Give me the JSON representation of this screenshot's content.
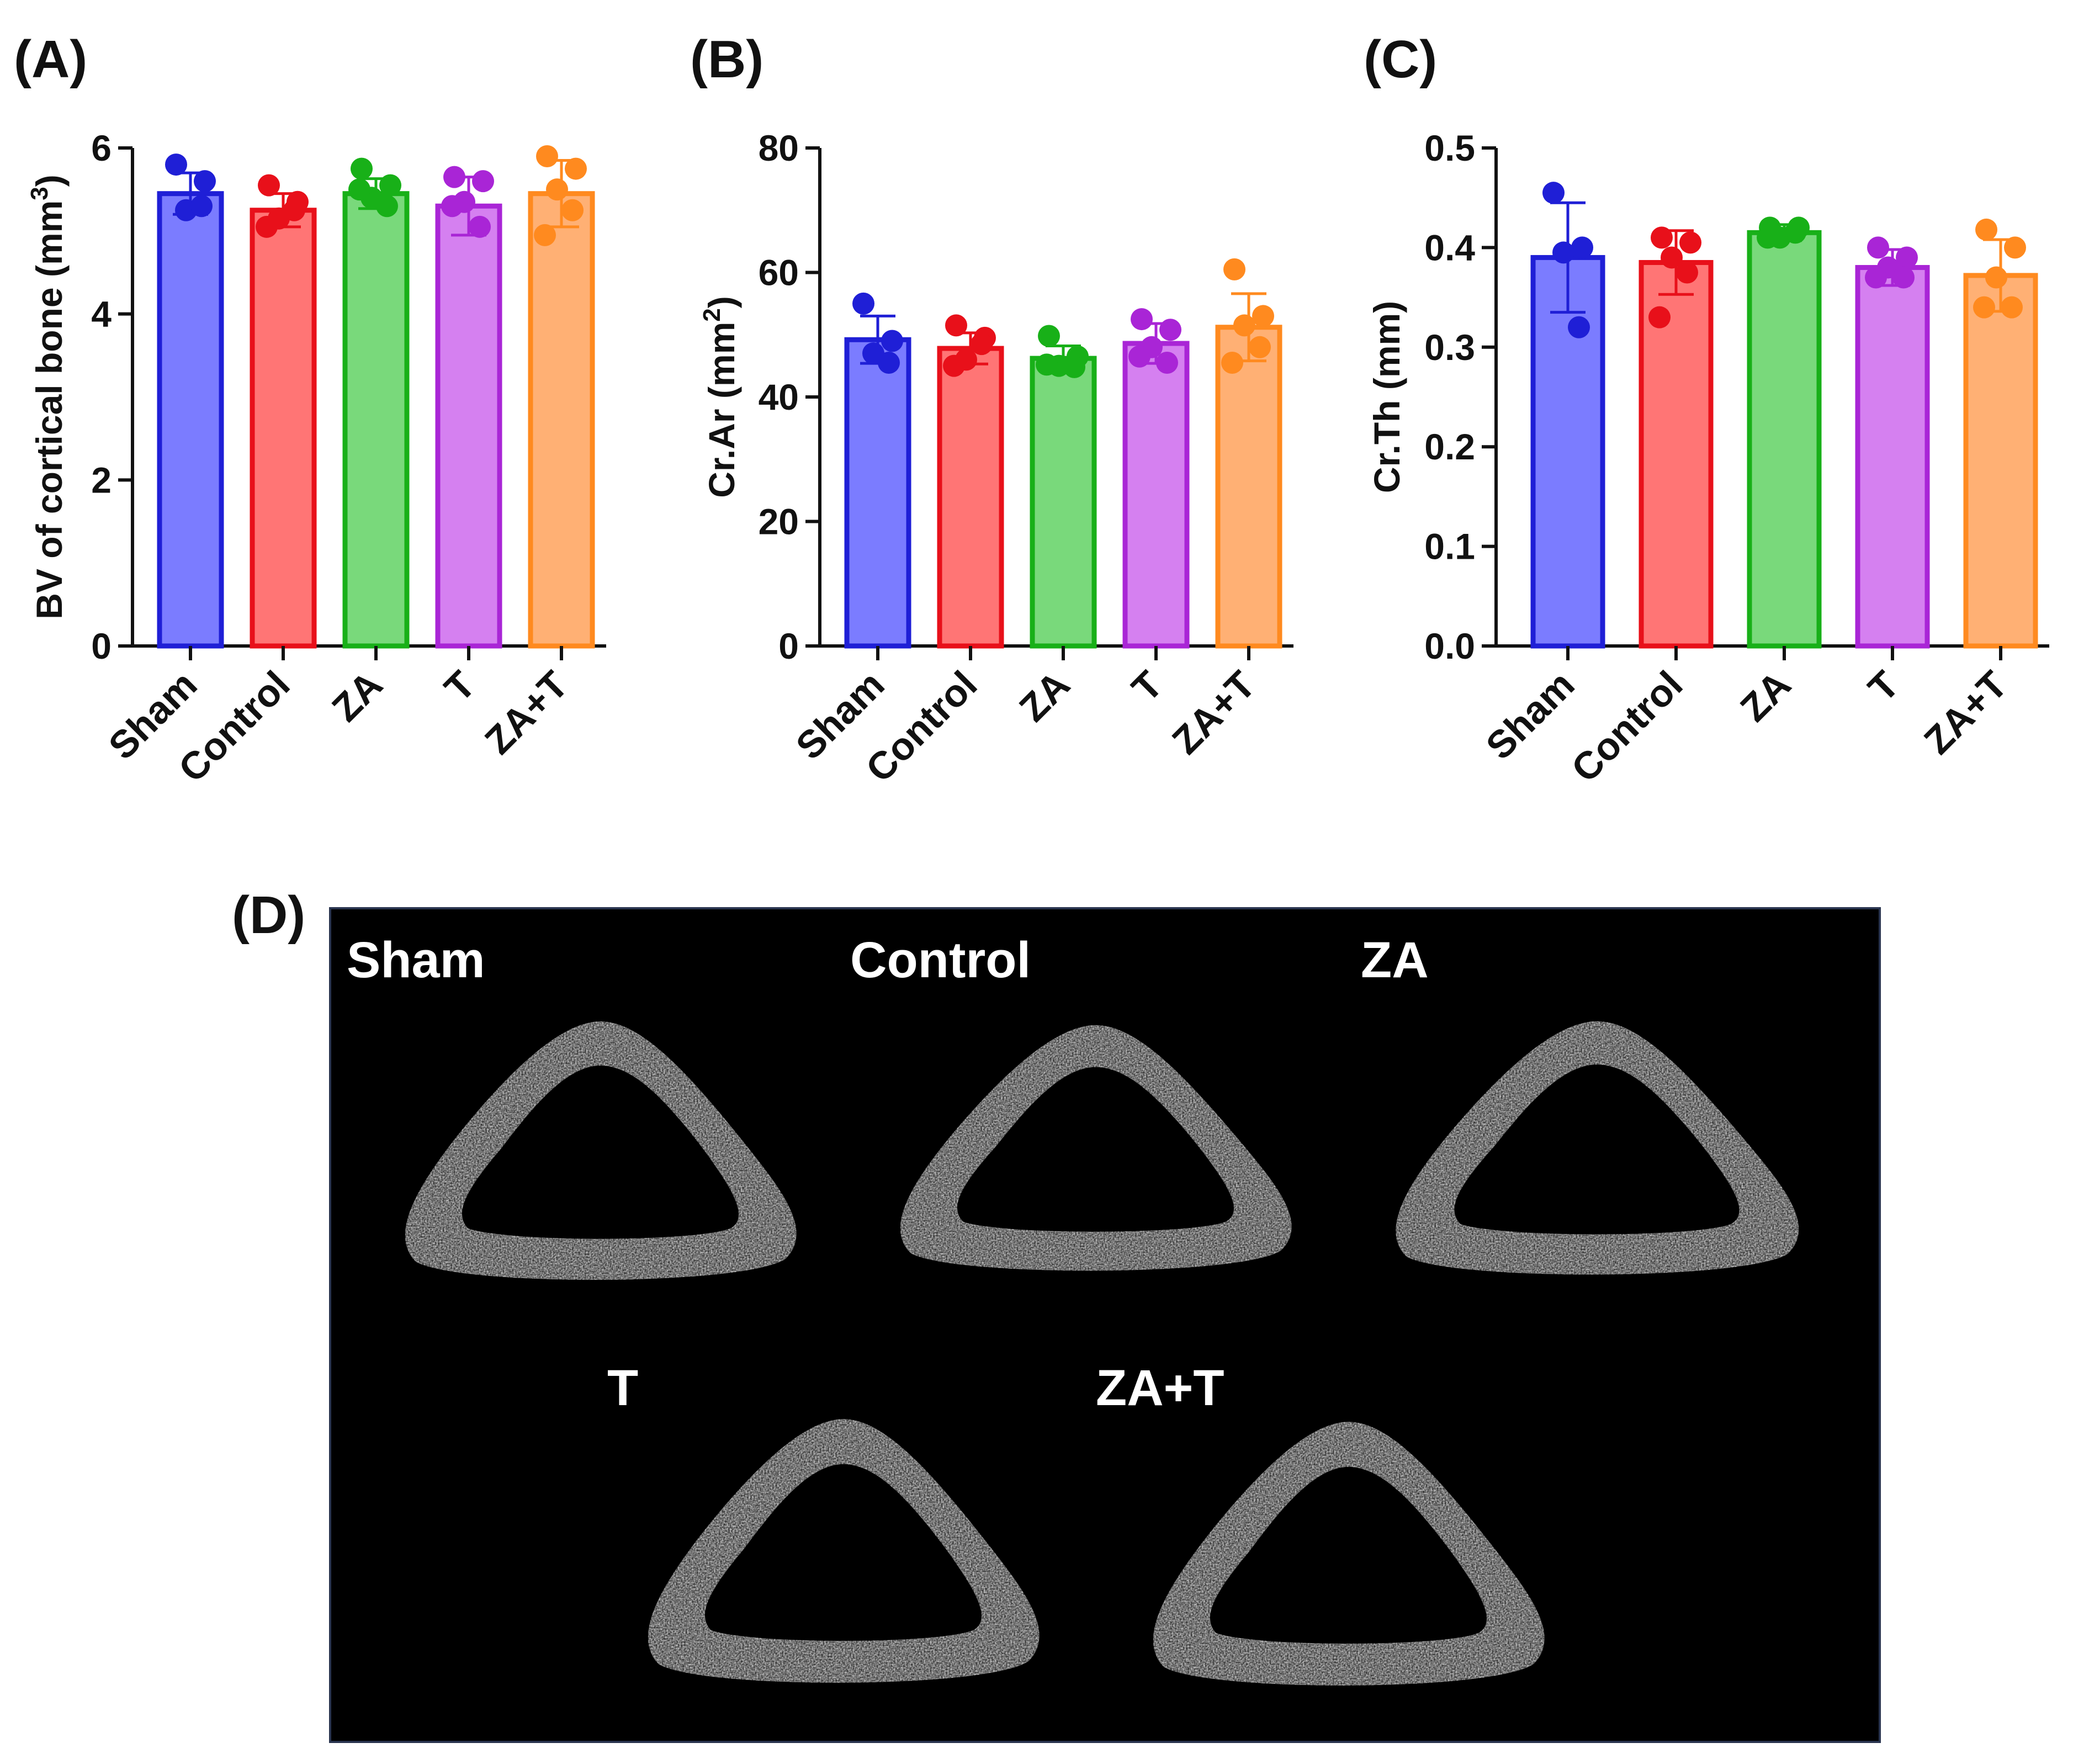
{
  "panel_d": {
    "letter": "(D)",
    "image_labels": [
      "Sham",
      "Control",
      "ZA",
      "T",
      "ZA+T"
    ]
  },
  "chart_data": [
    {
      "type": "bar",
      "panel": "(A)",
      "categories": [
        "Sham",
        "Control",
        "ZA",
        "T",
        "ZA+T"
      ],
      "values": [
        5.45,
        5.25,
        5.45,
        5.3,
        5.45
      ],
      "errors": [
        0.25,
        0.2,
        0.18,
        0.35,
        0.4
      ],
      "points": [
        [
          5.8,
          5.6,
          5.25,
          5.3
        ],
        [
          5.55,
          5.35,
          5.15,
          5.25,
          5.05
        ],
        [
          5.75,
          5.55,
          5.4,
          5.3,
          5.5
        ],
        [
          5.65,
          5.6,
          5.35,
          5.05,
          5.3
        ],
        [
          5.9,
          5.75,
          5.5,
          5.25,
          4.95
        ]
      ],
      "colors": [
        "#7b7cff",
        "#ff7575",
        "#79d97b",
        "#d580f0",
        "#ffb074"
      ],
      "edge_colors": [
        "#1f1fd6",
        "#e8101a",
        "#18b018",
        "#a925d6",
        "#ff8a1f"
      ],
      "ylabel": "BV of cortical bone (mm",
      "ylabel_sup": "3",
      "ylabel_end": ")",
      "ylim": [
        0,
        6
      ],
      "yticks": [
        "0",
        "2",
        "4",
        "6"
      ]
    },
    {
      "type": "bar",
      "panel": "(B)",
      "categories": [
        "Sham",
        "Control",
        "ZA",
        "T",
        "ZA+T"
      ],
      "values": [
        49.2,
        47.8,
        46.2,
        48.6,
        51.2
      ],
      "errors": [
        3.8,
        2.5,
        2.0,
        3.2,
        5.4
      ],
      "points": [
        [
          55.0,
          49.0,
          47.0,
          45.5
        ],
        [
          51.5,
          49.5,
          46.0,
          48.5,
          45.0
        ],
        [
          49.8,
          46.5,
          45.0,
          44.8,
          45.2
        ],
        [
          52.5,
          50.8,
          48.0,
          45.5,
          46.5
        ],
        [
          60.5,
          53.0,
          51.5,
          48.0,
          45.5
        ]
      ],
      "colors": [
        "#7b7cff",
        "#ff7575",
        "#79d97b",
        "#d580f0",
        "#ffb074"
      ],
      "edge_colors": [
        "#1f1fd6",
        "#e8101a",
        "#18b018",
        "#a925d6",
        "#ff8a1f"
      ],
      "ylabel": "Cr.Ar (mm",
      "ylabel_sup": "2",
      "ylabel_end": ")",
      "ylim": [
        0,
        80
      ],
      "yticks": [
        "0",
        "20",
        "40",
        "60",
        "80"
      ]
    },
    {
      "type": "bar",
      "panel": "(C)",
      "categories": [
        "Sham",
        "Control",
        "ZA",
        "T",
        "ZA+T"
      ],
      "values": [
        0.39,
        0.385,
        0.415,
        0.38,
        0.372
      ],
      "errors": [
        0.055,
        0.032,
        0.008,
        0.018,
        0.036
      ],
      "points": [
        [
          0.455,
          0.4,
          0.395,
          0.32
        ],
        [
          0.41,
          0.405,
          0.39,
          0.375,
          0.33
        ],
        [
          0.42,
          0.42,
          0.41,
          0.415,
          0.41
        ],
        [
          0.4,
          0.39,
          0.38,
          0.37,
          0.37
        ],
        [
          0.418,
          0.4,
          0.37,
          0.34,
          0.34
        ]
      ],
      "colors": [
        "#7b7cff",
        "#ff7575",
        "#79d97b",
        "#d580f0",
        "#ffb074"
      ],
      "edge_colors": [
        "#1f1fd6",
        "#e8101a",
        "#18b018",
        "#a925d6",
        "#ff8a1f"
      ],
      "ylabel": "Cr.Th (mm)",
      "ylabel_sup": "",
      "ylabel_end": "",
      "ylim": [
        0,
        0.5
      ],
      "yticks": [
        "0.0",
        "0.1",
        "0.2",
        "0.3",
        "0.4",
        "0.5"
      ]
    }
  ]
}
